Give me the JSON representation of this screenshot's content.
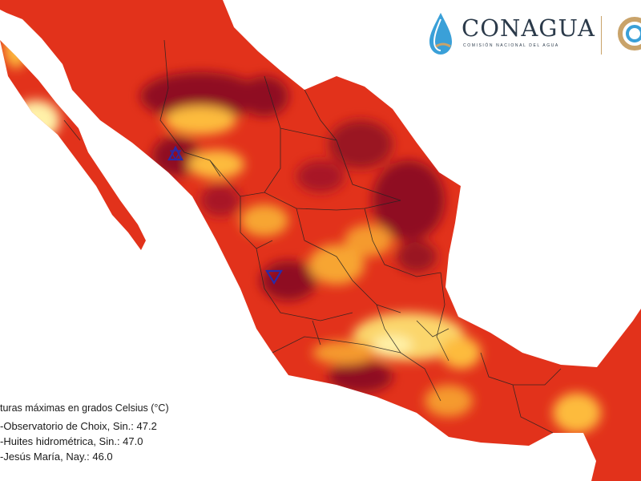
{
  "logo": {
    "name": "CONAGUA",
    "tagline": "COMISIÓN NACIONAL DEL AGUA"
  },
  "legend": {
    "title": "turas máximas en grados Celsius (°C)",
    "stations": [
      {
        "text": "-Observatorio de Choix, Sin.: 47.2",
        "marker": "triangle-up",
        "value": 47.2
      },
      {
        "text": "-Huites hidrométrica, Sin.: 47.0",
        "marker": "triangle-down",
        "value": 47.0
      },
      {
        "text": "-Jesús María, Nay.: 46.0",
        "marker": "triangle-down",
        "value": 46.0
      }
    ]
  },
  "colors": {
    "sea": "#ffffff",
    "heat_low": "#fff1a8",
    "heat_mid": "#fdbb3d",
    "heat_high": "#f0561e",
    "heat_very_high": "#d8231a",
    "heat_extreme": "#8f0f22",
    "border": "#222222",
    "logo_blue": "#3aa0d8",
    "logo_gold": "#c9a36a"
  }
}
